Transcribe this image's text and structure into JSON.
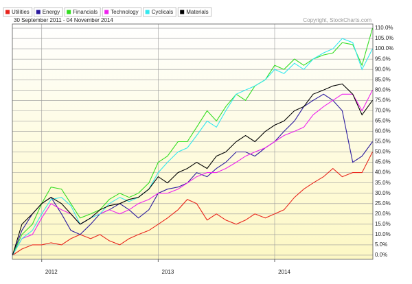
{
  "chart_data": {
    "type": "line",
    "subtitle": "30 September 2011 - 04 November 2014",
    "annotation": "Copyright, StockCharts.com",
    "x": [
      2011.75,
      2011.83,
      2011.92,
      2012.0,
      2012.08,
      2012.17,
      2012.25,
      2012.33,
      2012.42,
      2012.5,
      2012.58,
      2012.67,
      2012.75,
      2012.83,
      2012.92,
      2013.0,
      2013.08,
      2013.17,
      2013.25,
      2013.33,
      2013.42,
      2013.5,
      2013.58,
      2013.67,
      2013.75,
      2013.83,
      2013.92,
      2014.0,
      2014.08,
      2014.17,
      2014.25,
      2014.33,
      2014.42,
      2014.5,
      2014.58,
      2014.67,
      2014.75,
      2014.84
    ],
    "series": [
      {
        "name": "Utilities",
        "color": "#e8241c",
        "values": [
          0,
          3,
          5,
          5,
          6,
          5,
          8,
          10,
          8,
          10,
          7,
          5,
          8,
          10,
          12,
          15,
          18,
          22,
          27,
          25,
          17,
          20,
          17,
          15,
          17,
          20,
          18,
          20,
          22,
          28,
          32,
          35,
          38,
          42,
          38,
          40,
          40,
          50
        ]
      },
      {
        "name": "Energy",
        "color": "#2a1a9e",
        "values": [
          0,
          12,
          20,
          25,
          28,
          20,
          12,
          10,
          15,
          20,
          22,
          25,
          22,
          18,
          22,
          30,
          32,
          33,
          35,
          40,
          38,
          42,
          45,
          50,
          50,
          48,
          52,
          55,
          60,
          65,
          72,
          75,
          78,
          75,
          70,
          45,
          48,
          55
        ]
      },
      {
        "name": "Financials",
        "color": "#33dd22",
        "values": [
          0,
          10,
          15,
          25,
          33,
          32,
          25,
          18,
          20,
          22,
          27,
          30,
          28,
          30,
          35,
          45,
          48,
          55,
          55,
          62,
          70,
          65,
          72,
          78,
          75,
          82,
          85,
          92,
          90,
          95,
          92,
          95,
          97,
          98,
          103,
          102,
          92,
          110
        ]
      },
      {
        "name": "Technology",
        "color": "#ee22ee",
        "values": [
          0,
          8,
          10,
          18,
          25,
          22,
          20,
          15,
          18,
          20,
          22,
          20,
          22,
          25,
          27,
          30,
          30,
          32,
          35,
          38,
          40,
          40,
          42,
          45,
          48,
          50,
          52,
          55,
          58,
          60,
          62,
          68,
          72,
          75,
          78,
          78,
          70,
          80
        ]
      },
      {
        "name": "Cyclicals",
        "color": "#33e8ee",
        "values": [
          0,
          8,
          12,
          20,
          27,
          28,
          24,
          15,
          18,
          20,
          25,
          28,
          26,
          28,
          32,
          40,
          45,
          50,
          52,
          58,
          65,
          62,
          70,
          78,
          80,
          82,
          85,
          90,
          88,
          93,
          90,
          95,
          98,
          100,
          105,
          103,
          90,
          100
        ]
      },
      {
        "name": "Materials",
        "color": "#000000",
        "values": [
          0,
          15,
          20,
          25,
          28,
          25,
          20,
          15,
          18,
          22,
          24,
          25,
          27,
          28,
          32,
          38,
          35,
          40,
          42,
          45,
          42,
          48,
          50,
          55,
          58,
          55,
          60,
          63,
          65,
          70,
          72,
          78,
          80,
          82,
          83,
          78,
          68,
          75
        ]
      }
    ],
    "xlim": [
      2011.748,
      2014.843
    ],
    "xticks": [
      2012,
      2013,
      2014
    ],
    "ylim": [
      -2,
      112
    ],
    "yticks": [
      {
        "value": 0,
        "label": "0.0%"
      },
      {
        "value": 5,
        "label": "5.0%"
      },
      {
        "value": 10,
        "label": "10.0%"
      },
      {
        "value": 15,
        "label": "15.0%"
      },
      {
        "value": 20,
        "label": "20.0%"
      },
      {
        "value": 25,
        "label": "25.0%"
      },
      {
        "value": 30,
        "label": "30.0%"
      },
      {
        "value": 35,
        "label": "35.0%"
      },
      {
        "value": 40,
        "label": "40.0%"
      },
      {
        "value": 45,
        "label": "45.0%"
      },
      {
        "value": 50,
        "label": "50.0%"
      },
      {
        "value": 55,
        "label": "55.0%"
      },
      {
        "value": 60,
        "label": "60.0%"
      },
      {
        "value": 65,
        "label": "65.0%"
      },
      {
        "value": 70,
        "label": "70.0%"
      },
      {
        "value": 75,
        "label": "75.0%"
      },
      {
        "value": 80,
        "label": "80.0%"
      },
      {
        "value": 85,
        "label": "85.0%"
      },
      {
        "value": 90,
        "label": "90.0%"
      },
      {
        "value": 95,
        "label": "95.0%"
      },
      {
        "value": 100,
        "label": "100.0%"
      },
      {
        "value": 105,
        "label": "105.0%"
      },
      {
        "value": 110,
        "label": "110.0%"
      }
    ],
    "grid": true
  }
}
